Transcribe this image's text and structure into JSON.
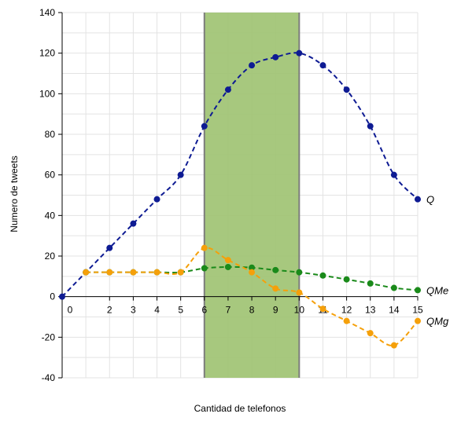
{
  "chart_data": {
    "type": "line",
    "title": "",
    "xlabel": "Cantidad de telefonos",
    "ylabel": "Numero de tweets",
    "xlim": [
      0,
      15
    ],
    "ylim": [
      -40,
      140
    ],
    "x_ticks": [
      "0",
      "2",
      "3",
      "4",
      "5",
      "6",
      "7",
      "8",
      "9",
      "10",
      "11",
      "12",
      "13",
      "14",
      "15"
    ],
    "x_tick_values": [
      0,
      2,
      3,
      4,
      5,
      6,
      7,
      8,
      9,
      10,
      11,
      12,
      13,
      14,
      15
    ],
    "y_ticks": [
      -40,
      -20,
      0,
      20,
      40,
      60,
      80,
      100,
      120,
      140
    ],
    "grid": true,
    "shaded_region": {
      "x_start": 6,
      "x_end": 10,
      "color": "#9fc373",
      "edge_color": "#7d7d7d"
    },
    "series": [
      {
        "name": "Q",
        "color": "#0e1b93",
        "x": [
          0,
          1,
          2,
          3,
          4,
          5,
          6,
          7,
          8,
          9,
          10,
          11,
          12,
          13,
          14,
          15
        ],
        "values": [
          0,
          12,
          24,
          36,
          48,
          60,
          84,
          102,
          114,
          118,
          120,
          114,
          102,
          84,
          60,
          48
        ]
      },
      {
        "name": "QMe",
        "color": "#1a8a1a",
        "x": [
          1,
          2,
          3,
          4,
          5,
          6,
          7,
          8,
          9,
          10,
          11,
          12,
          13,
          14,
          15
        ],
        "values": [
          12,
          12,
          12,
          12,
          12,
          14,
          14.6,
          14.3,
          13.1,
          12,
          10.4,
          8.5,
          6.5,
          4.3,
          3.2
        ]
      },
      {
        "name": "QMg",
        "color": "#f5a00a",
        "x": [
          1,
          2,
          3,
          4,
          5,
          6,
          7,
          8,
          9,
          10,
          11,
          12,
          13,
          14,
          15
        ],
        "values": [
          12,
          12,
          12,
          12,
          12,
          24,
          18,
          12,
          4,
          2,
          -6,
          -12,
          -18,
          -24,
          -12
        ]
      }
    ]
  }
}
